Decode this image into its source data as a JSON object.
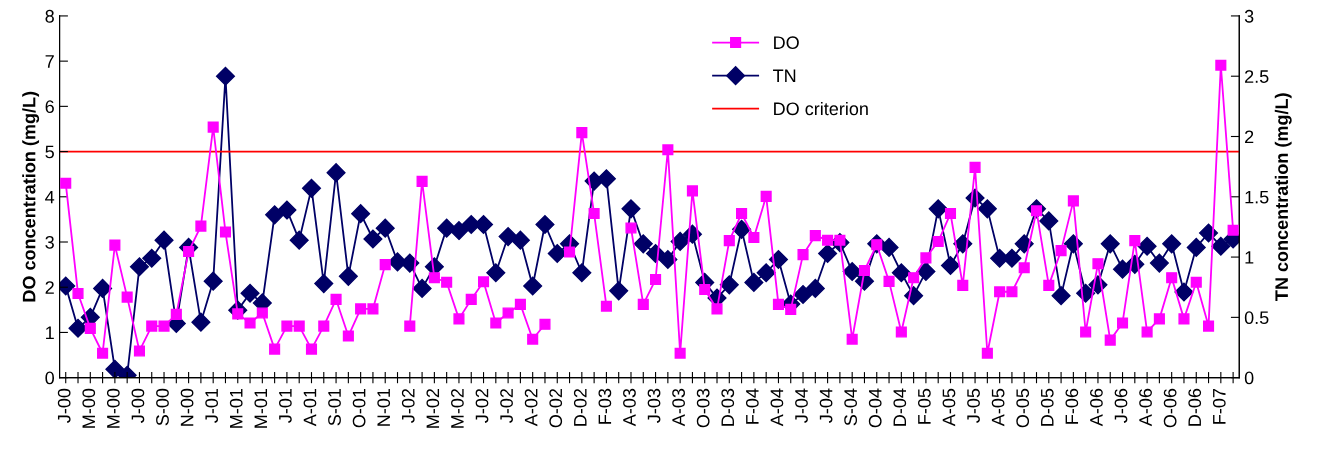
{
  "chart_data": {
    "type": "line",
    "categories": [
      "J-00",
      null,
      "M-00",
      null,
      "M-00",
      null,
      "J-00",
      null,
      "S-00",
      null,
      "N-00",
      null,
      "J-01",
      null,
      "M-01",
      null,
      "M-01",
      null,
      "J-01",
      null,
      "A-01",
      null,
      "S-01",
      null,
      "O-01",
      null,
      "N-01",
      null,
      "J-02",
      null,
      "M-02",
      null,
      "M-02",
      null,
      "J-02",
      null,
      "J-02",
      null,
      "A-02",
      null,
      "O-02",
      null,
      "D-02",
      null,
      "F-03",
      null,
      "A-03",
      null,
      "J-03",
      null,
      "A-03",
      null,
      "O-03",
      null,
      "D-03",
      null,
      "F-04",
      null,
      "A-04",
      null,
      "J-04",
      null,
      "J-04",
      null,
      "S-04",
      null,
      "O-04",
      null,
      "D-04",
      null,
      "F-05",
      null,
      "A-05",
      null,
      "J-05",
      null,
      "A-05",
      null,
      "O-05",
      null,
      "D-05",
      null,
      "F-06",
      null,
      "A-06",
      null,
      "J-06",
      null,
      "A-06",
      null,
      "O-06",
      null,
      "D-06",
      null,
      "F-07",
      null
    ],
    "ylabel": "DO concentration (mg/L)",
    "y2label": "TN concentration (mg/L)",
    "ylim": [
      0,
      8
    ],
    "yticks": [
      0,
      1,
      2,
      3,
      4,
      5,
      6,
      7,
      8
    ],
    "y2lim": [
      0,
      3
    ],
    "y2ticks": [
      0,
      0.5,
      1,
      1.5,
      2,
      2.5,
      3
    ],
    "grid": false,
    "legend": "top",
    "series": [
      {
        "name": "DO",
        "color": "#ff00ff",
        "marker": "square",
        "values": [
          4.3,
          1.86,
          1.09,
          0.54,
          2.93,
          1.78,
          0.59,
          1.14,
          1.14,
          1.4,
          2.79,
          3.35,
          5.54,
          3.22,
          1.41,
          1.21,
          1.43,
          0.63,
          1.14,
          1.14,
          0.63,
          1.14,
          1.73,
          0.92,
          1.52,
          1.52,
          2.5,
          null,
          1.14,
          4.34,
          2.21,
          2.11,
          1.3,
          1.73,
          2.12,
          1.21,
          1.43,
          1.62,
          0.85,
          1.18,
          null,
          2.78,
          5.42,
          3.63,
          1.58,
          null,
          3.31,
          1.62,
          2.17,
          5.04,
          0.54,
          4.13,
          1.95,
          1.52,
          3.03,
          3.63,
          3.1,
          4.01,
          1.62,
          1.51,
          2.72,
          3.14,
          3.04,
          3.04,
          0.85,
          2.37,
          2.94,
          2.13,
          1.01,
          2.21,
          2.65,
          3.01,
          3.63,
          2.04,
          4.65,
          0.54,
          1.9,
          1.9,
          2.43,
          3.69,
          2.04,
          2.81,
          3.91,
          1.01,
          2.52,
          0.83,
          1.21,
          3.03,
          1.01,
          1.3,
          2.21,
          1.3,
          2.11,
          1.14,
          6.91,
          3.26
        ]
      },
      {
        "name": "TN",
        "color": "#000066",
        "marker": "diamond",
        "axis": "y2",
        "values": [
          0.76,
          0.41,
          0.5,
          0.74,
          0.07,
          0.02,
          0.92,
          0.99,
          1.14,
          0.45,
          1.08,
          0.46,
          0.8,
          2.5,
          0.56,
          0.7,
          0.62,
          1.35,
          1.39,
          1.14,
          1.57,
          0.78,
          1.7,
          0.84,
          1.36,
          1.15,
          1.24,
          0.96,
          0.95,
          0.74,
          0.92,
          1.24,
          1.22,
          1.27,
          1.27,
          0.87,
          1.17,
          1.14,
          0.76,
          1.27,
          1.03,
          1.11,
          0.87,
          1.63,
          1.65,
          0.72,
          1.4,
          1.11,
          1.03,
          0.98,
          1.13,
          1.19,
          0.79,
          0.66,
          0.77,
          1.23,
          0.79,
          0.87,
          0.98,
          0.61,
          0.69,
          0.74,
          1.03,
          1.12,
          0.88,
          0.8,
          1.11,
          1.08,
          0.87,
          0.68,
          0.88,
          1.4,
          0.93,
          1.11,
          1.49,
          1.4,
          0.99,
          0.99,
          1.11,
          1.4,
          1.3,
          0.68,
          1.11,
          0.7,
          0.77,
          1.11,
          0.9,
          0.94,
          1.09,
          0.95,
          1.11,
          0.71,
          1.08,
          1.2,
          1.09,
          1.15
        ]
      }
    ],
    "ref_lines": [
      {
        "axis": "y",
        "value": 5,
        "label": "DO criterion",
        "color": "#ff0000",
        "line_style": "solid"
      }
    ]
  }
}
